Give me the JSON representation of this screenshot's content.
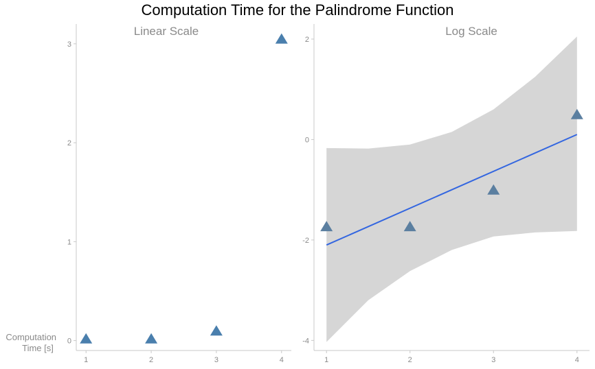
{
  "title": "Computation Time for the Palindrome Function",
  "y_axis_label_lines": [
    "Computation",
    "Time [s]"
  ],
  "colors": {
    "marker": "#4a7fad",
    "marker_log": "#5b7fa0",
    "fit_line": "#3366e0",
    "confidence_band": "#d6d6d6",
    "axis": "#c8c8c8",
    "text": "#8a8a8a"
  },
  "chart_data": [
    {
      "type": "scatter",
      "title": "Linear Scale",
      "x": [
        1,
        2,
        3,
        4
      ],
      "y": [
        0.02,
        0.02,
        0.1,
        3.05
      ],
      "xticks": [
        "1",
        "2",
        "3",
        "4"
      ],
      "yticks": [
        "0",
        "1",
        "2",
        "3"
      ],
      "xlim": [
        0.85,
        4.15
      ],
      "ylim": [
        -0.1,
        3.2
      ],
      "marker": "triangle",
      "grid": false
    },
    {
      "type": "scatter",
      "title": "Log Scale",
      "x": [
        1,
        2,
        3,
        4
      ],
      "y": [
        -1.73,
        -1.73,
        -1.0,
        0.5
      ],
      "xticks": [
        "1",
        "2",
        "3",
        "4"
      ],
      "yticks": [
        "2",
        "0",
        "-2",
        "-4"
      ],
      "xlim": [
        0.85,
        4.15
      ],
      "ylim": [
        -4.2,
        2.3
      ],
      "marker": "triangle",
      "grid": false,
      "fit_line": {
        "x": [
          1,
          4
        ],
        "y": [
          -2.1,
          0.1
        ]
      },
      "confidence_band": {
        "x": [
          1.0,
          1.5,
          2.0,
          2.5,
          3.0,
          3.5,
          4.0
        ],
        "upper": [
          -0.17,
          -0.18,
          -0.1,
          0.15,
          0.6,
          1.25,
          2.05
        ],
        "lower": [
          -4.03,
          -3.2,
          -2.62,
          -2.2,
          -1.93,
          -1.85,
          -1.82
        ]
      }
    }
  ]
}
